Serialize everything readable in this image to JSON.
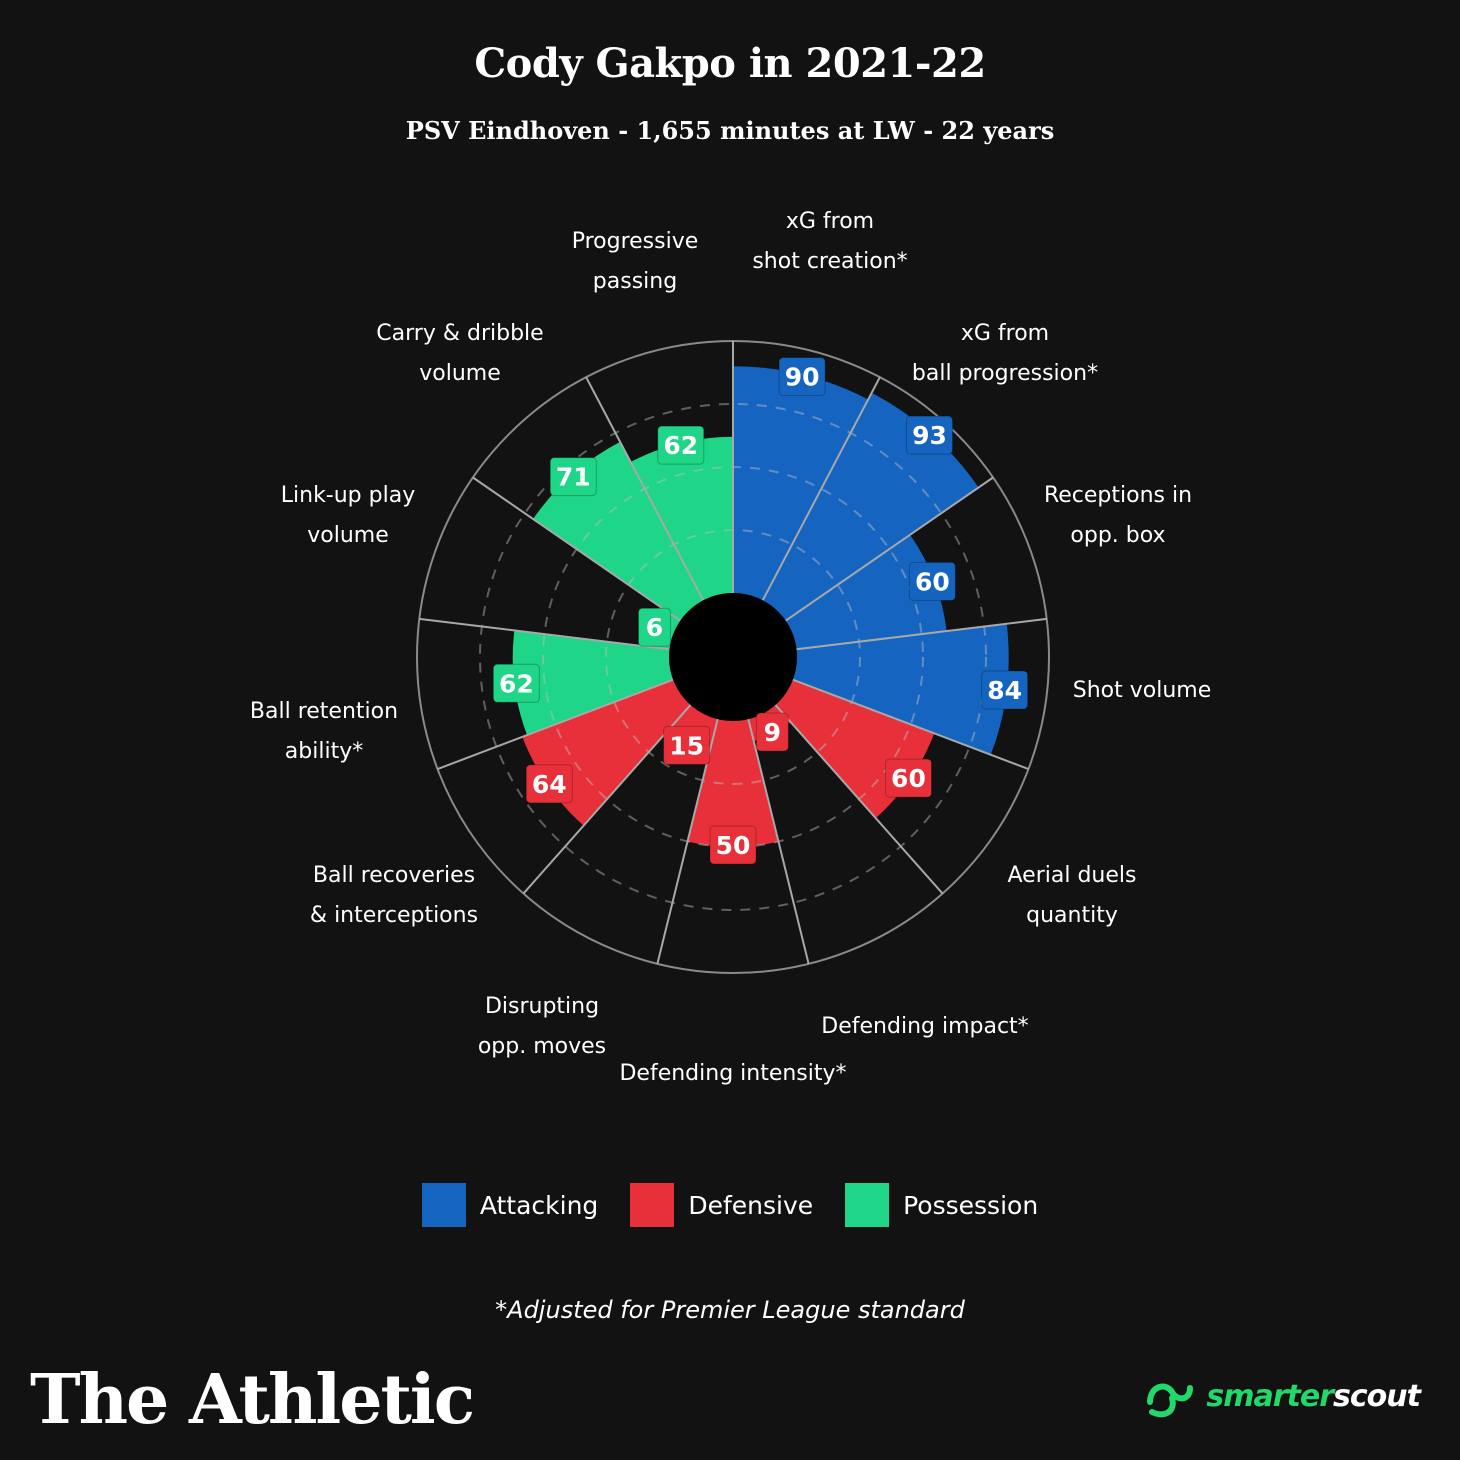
{
  "header": {
    "title": "Cody Gakpo in 2021-22",
    "subtitle": "PSV Eindhoven - 1,655 minutes at LW - 22 years"
  },
  "chart_data": {
    "type": "polar-bar",
    "title": "Cody Gakpo in 2021-22",
    "rlim": [
      0,
      100
    ],
    "gridlines": [
      25,
      50,
      75
    ],
    "categories": [
      {
        "label": [
          "xG from",
          "shot creation*"
        ],
        "value": 90,
        "group": "Attacking"
      },
      {
        "label": [
          "xG from",
          "ball progression*"
        ],
        "value": 93,
        "group": "Attacking"
      },
      {
        "label": [
          "Receptions in",
          "opp. box"
        ],
        "value": 60,
        "group": "Attacking"
      },
      {
        "label": [
          "Shot volume"
        ],
        "value": 84,
        "group": "Attacking"
      },
      {
        "label": [
          "Aerial duels",
          "quantity"
        ],
        "value": 60,
        "group": "Defensive"
      },
      {
        "label": [
          "Defending impact*"
        ],
        "value": 9,
        "group": "Defensive"
      },
      {
        "label": [
          "Defending intensity*"
        ],
        "value": 50,
        "group": "Defensive"
      },
      {
        "label": [
          "Disrupting",
          "opp. moves"
        ],
        "value": 15,
        "group": "Defensive"
      },
      {
        "label": [
          "Ball recoveries",
          "& interceptions"
        ],
        "value": 64,
        "group": "Defensive"
      },
      {
        "label": [
          "Ball retention",
          "ability*"
        ],
        "value": 62,
        "group": "Possession"
      },
      {
        "label": [
          "Link-up play",
          "volume"
        ],
        "value": 6,
        "group": "Possession"
      },
      {
        "label": [
          "Carry & dribble",
          "volume"
        ],
        "value": 71,
        "group": "Possession"
      },
      {
        "label": [
          "Progressive",
          "passing"
        ],
        "value": 62,
        "group": "Possession"
      }
    ],
    "legend": {
      "placement": "bottom",
      "items": [
        {
          "name": "Attacking",
          "color": "#1565c0"
        },
        {
          "name": "Defensive",
          "color": "#e8303a"
        },
        {
          "name": "Possession",
          "color": "#1fd587"
        }
      ]
    },
    "grid": true
  },
  "footnote": "*Adjusted for Premier League standard",
  "branding": {
    "left": "The Athletic",
    "right_a": "smarter",
    "right_b": "scout"
  }
}
